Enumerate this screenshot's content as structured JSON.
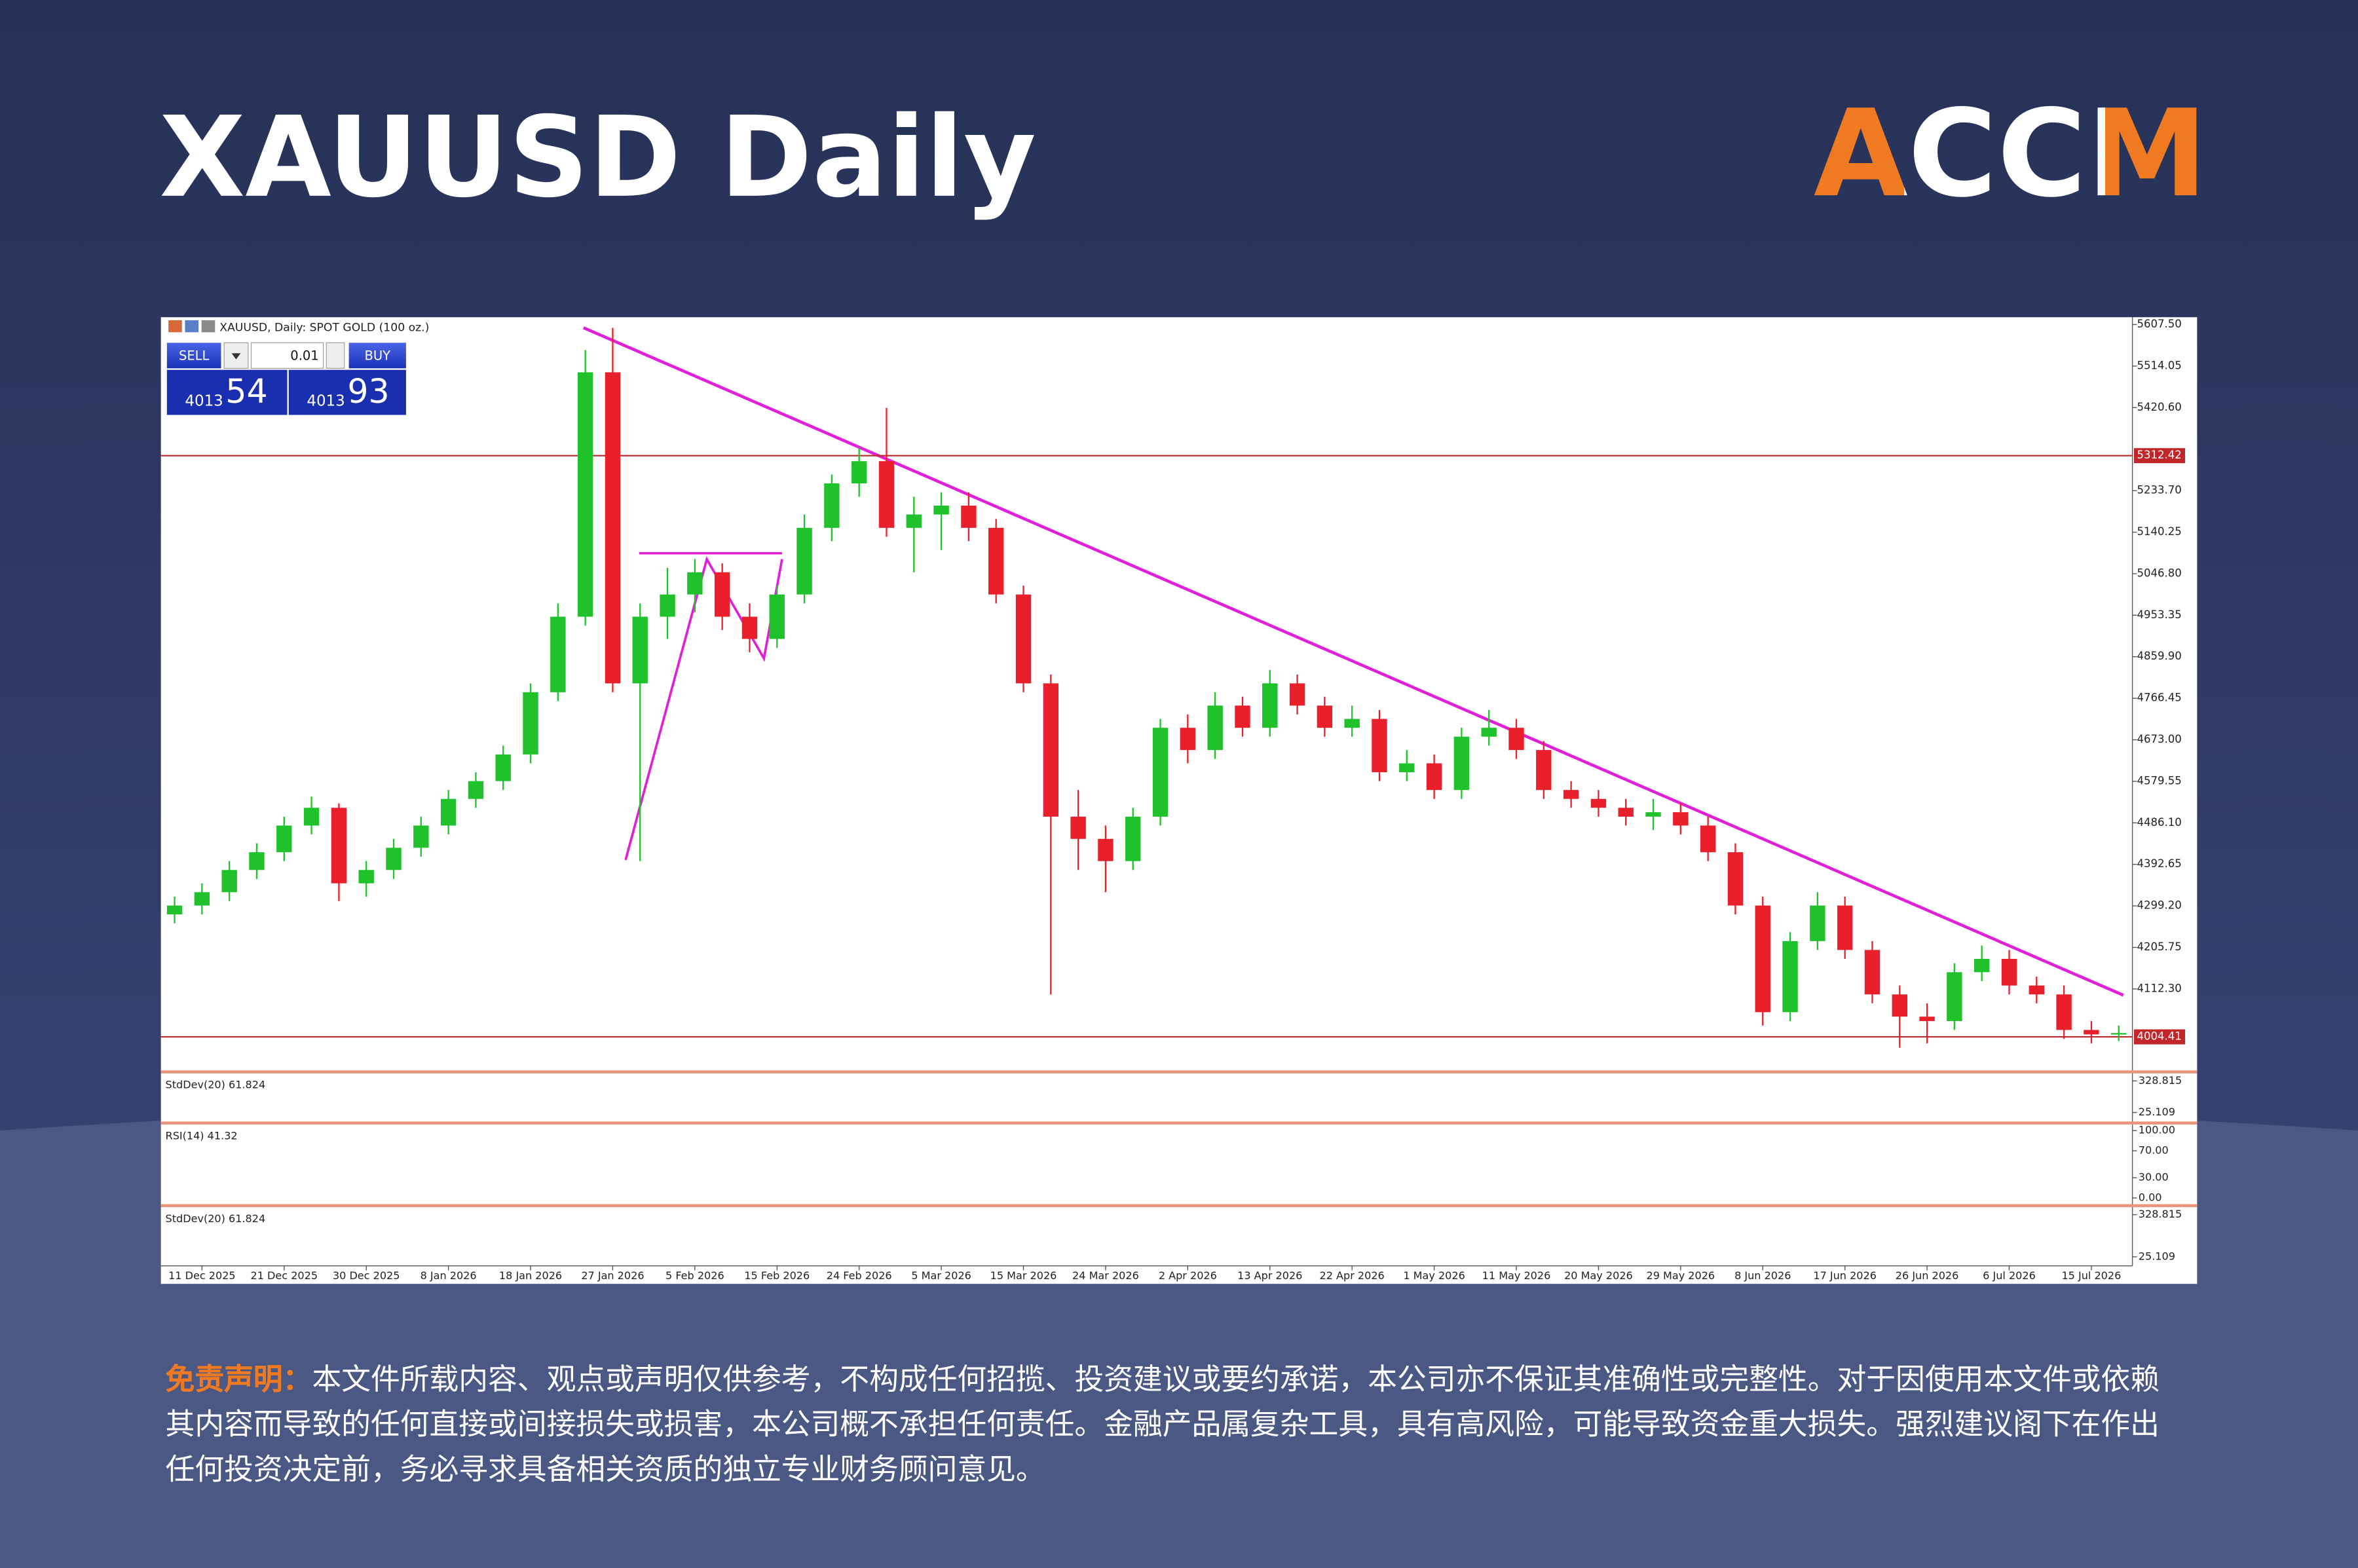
{
  "header": {
    "title": "XAUUSD Daily",
    "logo": "ACCM"
  },
  "trade_panel": {
    "sell": "SELL",
    "buy": "BUY",
    "lot": "0.01",
    "bid_main": "4013",
    "bid_pips": "54",
    "ask_main": "4013",
    "ask_pips": "93"
  },
  "chart_data": {
    "type": "candlestick",
    "title": "XAUUSD, Daily: SPOT GOLD (100 oz.)",
    "categories": [
      null,
      "11 Dec 2025",
      null,
      null,
      "21 Dec 2025",
      null,
      null,
      "30 Dec 2025",
      null,
      null,
      "8 Jan 2026",
      null,
      null,
      "18 Jan 2026",
      null,
      null,
      "27 Jan 2026",
      null,
      null,
      "5 Feb 2026",
      null,
      null,
      "15 Feb 2026",
      null,
      null,
      "24 Feb 2026",
      null,
      null,
      "5 Mar 2026",
      null,
      null,
      "15 Mar 2026",
      null,
      null,
      "24 Mar 2026",
      null,
      null,
      "2 Apr 2026",
      null,
      null,
      "13 Apr 2026",
      null,
      null,
      "22 Apr 2026",
      null,
      null,
      "1 May 2026",
      null,
      null,
      "11 May 2026",
      null,
      null,
      "20 May 2026",
      null,
      null,
      "29 May 2026",
      null,
      null,
      "8 Jun 2026",
      null,
      null,
      "17 Jun 2026",
      null,
      null,
      "26 Jun 2026",
      null,
      null,
      "6 Jul 2026",
      null,
      null,
      "15 Jul 2026",
      null
    ],
    "open": [
      4280,
      4300,
      4330,
      4380,
      4420,
      4480,
      4520,
      4350,
      4380,
      4430,
      4480,
      4540,
      4580,
      4640,
      4780,
      4950,
      5500,
      4800,
      4950,
      5000,
      5050,
      4950,
      4900,
      5000,
      5150,
      5250,
      5300,
      5150,
      5180,
      5200,
      5150,
      5000,
      4800,
      4500,
      4450,
      4400,
      4500,
      4700,
      4650,
      4750,
      4700,
      4800,
      4750,
      4700,
      4720,
      4600,
      4620,
      4560,
      4680,
      4700,
      4650,
      4560,
      4540,
      4520,
      4500,
      4510,
      4480,
      4420,
      4300,
      4060,
      4220,
      4300,
      4200,
      4100,
      4050,
      4040,
      4150,
      4180,
      4120,
      4100,
      4020,
      4010
    ],
    "high": [
      4320,
      4350,
      4400,
      4440,
      4500,
      4545,
      4530,
      4400,
      4450,
      4500,
      4560,
      4600,
      4660,
      4800,
      4980,
      5550,
      5600,
      4980,
      5060,
      5080,
      5070,
      4980,
      5020,
      5180,
      5270,
      5330,
      5420,
      5220,
      5230,
      5230,
      5170,
      5020,
      4820,
      4560,
      4480,
      4520,
      4720,
      4730,
      4780,
      4770,
      4830,
      4820,
      4770,
      4750,
      4740,
      4650,
      4640,
      4700,
      4740,
      4720,
      4670,
      4580,
      4560,
      4540,
      4540,
      4530,
      4500,
      4440,
      4320,
      4240,
      4330,
      4320,
      4220,
      4120,
      4080,
      4170,
      4210,
      4200,
      4140,
      4120,
      4040,
      4030
    ],
    "low": [
      4260,
      4280,
      4310,
      4360,
      4400,
      4460,
      4310,
      4320,
      4360,
      4410,
      4460,
      4520,
      4560,
      4620,
      4760,
      4930,
      4780,
      4400,
      4900,
      4960,
      4920,
      4870,
      4880,
      4980,
      5120,
      5220,
      5130,
      5050,
      5100,
      5120,
      4980,
      4780,
      4100,
      4380,
      4330,
      4380,
      4480,
      4620,
      4630,
      4680,
      4680,
      4730,
      4680,
      4680,
      4580,
      4580,
      4540,
      4540,
      4660,
      4630,
      4540,
      4520,
      4500,
      4480,
      4470,
      4460,
      4400,
      4280,
      4030,
      4040,
      4200,
      4180,
      4080,
      3980,
      3990,
      4020,
      4130,
      4100,
      4080,
      4000,
      3990,
      3995
    ],
    "close": [
      4300,
      4330,
      4380,
      4420,
      4480,
      4520,
      4350,
      4380,
      4430,
      4480,
      4540,
      4580,
      4640,
      4780,
      4950,
      5500,
      4800,
      4950,
      5000,
      5050,
      4950,
      4900,
      5000,
      5150,
      5250,
      5300,
      5150,
      5180,
      5200,
      5150,
      5000,
      4800,
      4500,
      4450,
      4400,
      4500,
      4700,
      4650,
      4750,
      4700,
      4800,
      4750,
      4700,
      4720,
      4600,
      4620,
      4560,
      4680,
      4700,
      4650,
      4560,
      4540,
      4520,
      4500,
      4510,
      4480,
      4420,
      4300,
      4060,
      4220,
      4300,
      4200,
      4100,
      4050,
      4040,
      4150,
      4180,
      4120,
      4100,
      4020,
      4010,
      4013
    ],
    "up_color": "#1fc22a",
    "down_color": "#e9202b",
    "ylim": [
      3929,
      5624
    ],
    "yticks": [
      {
        "value": 5607.5,
        "label": "5607.50"
      },
      5514.05,
      {
        "value": 5420.6,
        "label": "5420.60"
      },
      {
        "value": 5233.7,
        "label": "5233.70"
      },
      5140.25,
      {
        "value": 5046.8,
        "label": "5046.80"
      },
      4953.35,
      {
        "value": 4859.9,
        "label": "4859.90"
      },
      4766.45,
      {
        "value": 4673,
        "label": "4673.00"
      },
      4579.55,
      {
        "value": 4486.1,
        "label": "4486.10"
      },
      4392.65,
      {
        "value": 4299.2,
        "label": "4299.20"
      },
      4205.75,
      {
        "value": 4112.3,
        "label": "4112.30"
      }
    ],
    "hlines": [
      5312.42,
      4004.41
    ],
    "hline_color": "#c0262a",
    "indicators": [
      {
        "label": "StdDev(20) 61.824",
        "ylim": [
          -47,
          401
        ],
        "yticks": [
          328.815,
          25.109
        ]
      },
      {
        "label": "RSI(14) 41.32",
        "ylim": [
          -7,
          109
        ],
        "yticks": [
          {
            "value": 100,
            "label": "100.00"
          },
          {
            "value": 70,
            "label": "70.00"
          },
          {
            "value": 30,
            "label": "30.00"
          },
          {
            "value": 0,
            "label": "0.00"
          }
        ]
      },
      {
        "label": "StdDev(20) 61.824",
        "ylim": [
          -40,
          383
        ],
        "yticks": [
          328.815,
          25.109
        ]
      }
    ]
  },
  "disclaimer": {
    "label": "免责声明：",
    "text": "本文件所载内容、观点或声明仅供参考，不构成任何招揽、投资建议或要约承诺，本公司亦不保证其准确性或完整性。对于因使用本文件或依赖其内容而导致的任何直接或间接损失或损害，本公司概不承担任何责任。金融产品属复杂工具，具有高风险，可能导致资金重大损失。强烈建议阁下在作出任何投资决定前，务必寻求具备相关资质的独立专业财务顾问意见。"
  }
}
